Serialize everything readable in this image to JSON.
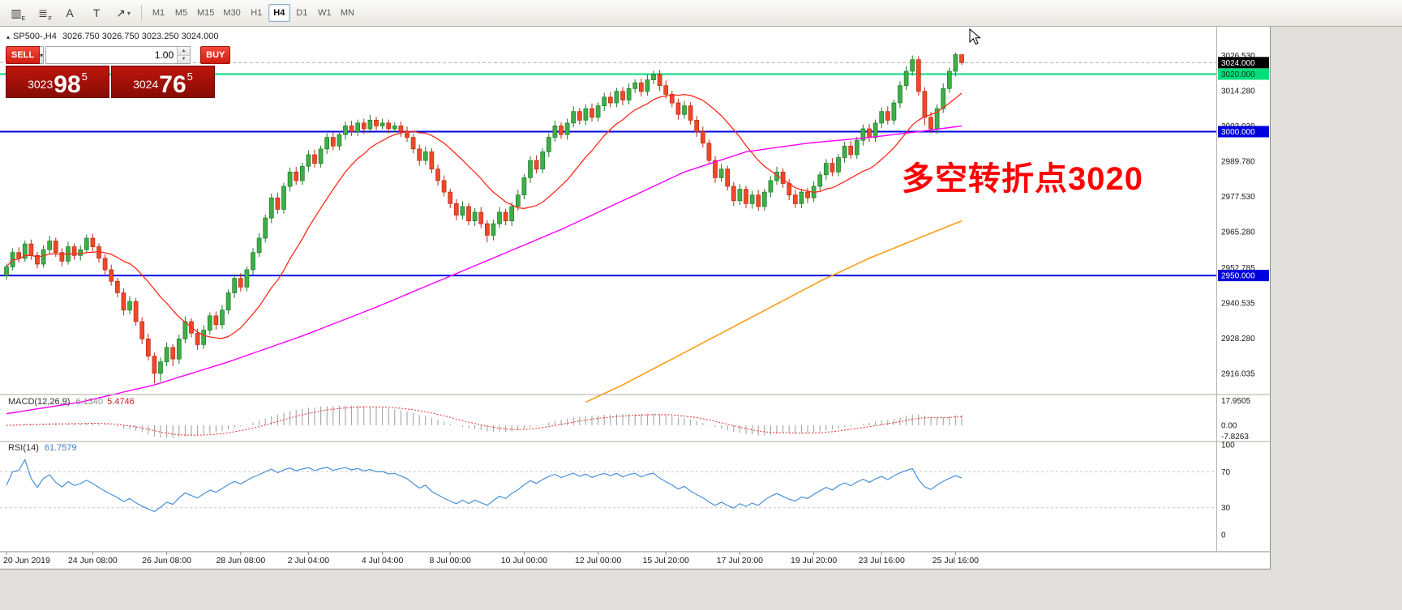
{
  "toolbar": {
    "tools": [
      {
        "name": "chart-type-icon",
        "glyph": "▥",
        "sub": "E"
      },
      {
        "name": "indicators-icon",
        "glyph": "≣",
        "sub": "F"
      },
      {
        "name": "font-icon",
        "glyph": "A"
      },
      {
        "name": "text-label-icon",
        "glyph": "T"
      },
      {
        "name": "arrow-objects-icon",
        "glyph": "↗",
        "caret": "▾"
      }
    ],
    "timeframes": [
      "M1",
      "M5",
      "M15",
      "M30",
      "H1",
      "H4",
      "D1",
      "W1",
      "MN"
    ],
    "active_timeframe": "H4"
  },
  "chart": {
    "title_symbol": "SP500-,H4",
    "title_ohlc": "3026.750 3026.750 3023.250 3024.000",
    "annotation": {
      "text": "多空转折点3020",
      "color": "#ff0000"
    }
  },
  "trade_panel": {
    "sell_label": "SELL",
    "buy_label": "BUY",
    "volume": "1.00",
    "bid": {
      "main": "3023",
      "big": "98",
      "sup": "5"
    },
    "ask": {
      "main": "3024",
      "big": "76",
      "sup": "5"
    }
  },
  "price_axis": {
    "labels": [
      "3026.530",
      "3014.280",
      "3002.030",
      "2989.780",
      "2977.530",
      "2965.280",
      "2952.785",
      "2940.535",
      "2928.280",
      "2916.035"
    ],
    "tags": [
      {
        "value": "3024.000",
        "price": 3024.0,
        "bg": "#000000",
        "fg": "#ffffff",
        "name": "current-price-tag"
      },
      {
        "value": "3020.000",
        "price": 3020.0,
        "bg": "#00dd7a",
        "fg": "#00391c",
        "name": "hline-3020-tag"
      },
      {
        "value": "3000.000",
        "price": 3000.0,
        "bg": "#0000dd",
        "fg": "#ffffff",
        "name": "hline-3000-tag"
      },
      {
        "value": "2950.000",
        "price": 2950.0,
        "bg": "#0000dd",
        "fg": "#ffffff",
        "name": "hline-2950-tag"
      }
    ]
  },
  "time_axis": {
    "labels": [
      {
        "text": "20 Jun 2019",
        "i": 0
      },
      {
        "text": "24 Jun 08:00",
        "i": 14
      },
      {
        "text": "26 Jun 08:00",
        "i": 26
      },
      {
        "text": "28 Jun 08:00",
        "i": 38
      },
      {
        "text": "2 Jul 04:00",
        "i": 49
      },
      {
        "text": "4 Jul 04:00",
        "i": 61
      },
      {
        "text": "8 Jul 00:00",
        "i": 72
      },
      {
        "text": "10 Jul 00:00",
        "i": 84
      },
      {
        "text": "12 Jul 00:00",
        "i": 96
      },
      {
        "text": "15 Jul 20:00",
        "i": 107
      },
      {
        "text": "17 Jul 20:00",
        "i": 119
      },
      {
        "text": "19 Jul 20:00",
        "i": 131
      },
      {
        "text": "23 Jul 16:00",
        "i": 142
      },
      {
        "text": "25 Jul 16:00",
        "i": 154
      }
    ]
  },
  "indicators": {
    "macd": {
      "label": "MACD(12,26,9)",
      "v1": "6.1340",
      "v2": "5.4746",
      "axis": [
        "17.9505",
        "0.00",
        "-7.8263"
      ]
    },
    "rsi": {
      "label": "RSI(14)",
      "value": "61.7579",
      "axis": [
        "100",
        "70",
        "30",
        "0"
      ]
    }
  },
  "chart_data": {
    "type": "candlestick",
    "symbol": "SP500-",
    "period": "H4",
    "title": "SP500-,H4 3026.750 3026.750 3023.250 3024.000",
    "price_range": [
      2909.5,
      3034.5
    ],
    "bid_line": 3024.0,
    "up_color": "#3fae49",
    "up_edge": "#1c7a24",
    "down_color": "#f0482a",
    "down_edge": "#b52a10",
    "ma_fast_period": 15,
    "ma_fast_color": "#ff2a1a",
    "ma_magenta_color": "#ff00ff",
    "ma_orange_color": "#ffa21f",
    "ma_magenta": [
      [
        0,
        2902
      ],
      [
        12,
        2906
      ],
      [
        24,
        2912
      ],
      [
        36,
        2920
      ],
      [
        48,
        2929
      ],
      [
        60,
        2939
      ],
      [
        70,
        2948
      ],
      [
        80,
        2957
      ],
      [
        90,
        2966
      ],
      [
        100,
        2976
      ],
      [
        110,
        2986
      ],
      [
        120,
        2993
      ],
      [
        130,
        2996
      ],
      [
        140,
        2998
      ],
      [
        148,
        3000
      ],
      [
        155,
        3002
      ]
    ],
    "ma_orange": [
      [
        94,
        2906
      ],
      [
        100,
        2912
      ],
      [
        108,
        2921
      ],
      [
        116,
        2930
      ],
      [
        124,
        2939
      ],
      [
        132,
        2948
      ],
      [
        140,
        2956
      ],
      [
        148,
        2963
      ],
      [
        155,
        2969
      ]
    ],
    "hlines": [
      {
        "price": 3020,
        "color": "#00dd7a",
        "width": 2
      },
      {
        "price": 3000,
        "color": "#0000e6",
        "width": 2
      },
      {
        "price": 2950,
        "color": "#0000e6",
        "width": 2
      }
    ],
    "macd": {
      "fast": 12,
      "slow": 26,
      "signal": 9,
      "hist_color": "#9c9c9c",
      "signal_color": "#e03030",
      "range": [
        -10,
        20
      ]
    },
    "rsi": {
      "period": 14,
      "color": "#4a90d9",
      "levels": [
        70,
        30
      ],
      "range": [
        0,
        100
      ]
    },
    "candles": [
      [
        2950,
        2954.2,
        2948.5,
        2953
      ],
      [
        2953,
        2959.5,
        2951.8,
        2958
      ],
      [
        2958,
        2959.8,
        2954.5,
        2956
      ],
      [
        2956,
        2962.2,
        2954.8,
        2961
      ],
      [
        2961,
        2962.5,
        2955.5,
        2957
      ],
      [
        2957,
        2958.2,
        2952.5,
        2954
      ],
      [
        2954,
        2960.5,
        2952.8,
        2959
      ],
      [
        2959,
        2963.8,
        2957.5,
        2962
      ],
      [
        2962,
        2963.2,
        2956.5,
        2958
      ],
      [
        2958,
        2959.5,
        2953.2,
        2955
      ],
      [
        2955,
        2961.8,
        2953.8,
        2960
      ],
      [
        2960,
        2961.2,
        2955.5,
        2957
      ],
      [
        2957,
        2960.5,
        2955.2,
        2959
      ],
      [
        2959,
        2964.2,
        2957.8,
        2963
      ],
      [
        2963,
        2964.5,
        2958.5,
        2960
      ],
      [
        2960,
        2961.2,
        2954.5,
        2956
      ],
      [
        2956,
        2957.5,
        2950.2,
        2952
      ],
      [
        2952,
        2953.8,
        2946.5,
        2948
      ],
      [
        2948,
        2949.2,
        2942.5,
        2944
      ],
      [
        2944,
        2945.5,
        2936.2,
        2938
      ],
      [
        2938,
        2942.8,
        2936.5,
        2941
      ],
      [
        2941,
        2942.2,
        2932.5,
        2934
      ],
      [
        2934,
        2935.5,
        2926.2,
        2928
      ],
      [
        2928,
        2929.8,
        2920.5,
        2922
      ],
      [
        2922,
        2923.2,
        2912.5,
        2916
      ],
      [
        2916,
        2921.5,
        2913.2,
        2920
      ],
      [
        2920,
        2926.8,
        2918.5,
        2925
      ],
      [
        2925,
        2926.2,
        2918.5,
        2921
      ],
      [
        2921,
        2929.5,
        2919.2,
        2928
      ],
      [
        2928,
        2935.8,
        2926.5,
        2934
      ],
      [
        2934,
        2935.2,
        2928.5,
        2930
      ],
      [
        2930,
        2931.5,
        2924.2,
        2926
      ],
      [
        2926,
        2932.8,
        2924.5,
        2931
      ],
      [
        2931,
        2937.2,
        2929.5,
        2936
      ],
      [
        2936,
        2937.5,
        2931.2,
        2933
      ],
      [
        2933,
        2939.8,
        2931.5,
        2938
      ],
      [
        2938,
        2945.2,
        2936.5,
        2944
      ],
      [
        2944,
        2950.5,
        2942.2,
        2949
      ],
      [
        2949,
        2950.8,
        2944.5,
        2946
      ],
      [
        2946,
        2953.2,
        2944.5,
        2952
      ],
      [
        2952,
        2959.5,
        2950.2,
        2958
      ],
      [
        2958,
        2964.8,
        2956.5,
        2963
      ],
      [
        2963,
        2971.2,
        2961.5,
        2970
      ],
      [
        2970,
        2978.5,
        2968.2,
        2977
      ],
      [
        2977,
        2978.8,
        2971.5,
        2973
      ],
      [
        2973,
        2982.2,
        2971.5,
        2981
      ],
      [
        2981,
        2987.5,
        2979.2,
        2986
      ],
      [
        2986,
        2987.8,
        2981.5,
        2983
      ],
      [
        2983,
        2989.2,
        2981.5,
        2988
      ],
      [
        2988,
        2993.5,
        2986.2,
        2992
      ],
      [
        2992,
        2993.8,
        2987.5,
        2989
      ],
      [
        2989,
        2995.2,
        2987.5,
        2994
      ],
      [
        2994,
        2999.5,
        2992.2,
        2998
      ],
      [
        2998,
        2999.8,
        2993.5,
        2995
      ],
      [
        2995,
        3000.2,
        2993.5,
        2999
      ],
      [
        2999,
        3003.5,
        2997.2,
        3002
      ],
      [
        3002,
        3003.8,
        2998.5,
        3000
      ],
      [
        3000,
        3004.2,
        2998.5,
        3003
      ],
      [
        3003,
        3004.5,
        2999.2,
        3001
      ],
      [
        3001,
        3005.8,
        2999.5,
        3004
      ],
      [
        3004,
        3005.2,
        3000.5,
        3002
      ],
      [
        3002,
        3004.5,
        3000.8,
        3003
      ],
      [
        3003,
        3004.2,
        2999.5,
        3001
      ],
      [
        3001,
        3003.2,
        2999.8,
        3002
      ],
      [
        3002,
        3003.5,
        2998.2,
        3000
      ],
      [
        3000,
        3001.8,
        2996.5,
        2998
      ],
      [
        2998,
        2999.2,
        2992.5,
        2994
      ],
      [
        2994,
        2995.5,
        2988.2,
        2990
      ],
      [
        2990,
        2994.8,
        2988.5,
        2993
      ],
      [
        2993,
        2994.2,
        2985.5,
        2987
      ],
      [
        2987,
        2988.5,
        2981.2,
        2983
      ],
      [
        2983,
        2984.8,
        2977.5,
        2979
      ],
      [
        2979,
        2980.2,
        2973.5,
        2975
      ],
      [
        2975,
        2976.5,
        2969.2,
        2971
      ],
      [
        2971,
        2975.8,
        2969.5,
        2974
      ],
      [
        2974,
        2975.2,
        2967.5,
        2969
      ],
      [
        2969,
        2973.5,
        2967.2,
        2972
      ],
      [
        2972,
        2973.8,
        2966.5,
        2968
      ],
      [
        2968,
        2969.2,
        2961.5,
        2964
      ],
      [
        2964,
        2969.5,
        2962.2,
        2968
      ],
      [
        2968,
        2973.8,
        2966.5,
        2972
      ],
      [
        2972,
        2973.2,
        2967.5,
        2969
      ],
      [
        2969,
        2975.5,
        2967.2,
        2974
      ],
      [
        2974,
        2979.8,
        2972.5,
        2978
      ],
      [
        2978,
        2985.2,
        2976.5,
        2984
      ],
      [
        2984,
        2991.5,
        2982.2,
        2990
      ],
      [
        2990,
        2991.8,
        2985.5,
        2987
      ],
      [
        2987,
        2994.2,
        2985.5,
        2993
      ],
      [
        2993,
        2999.5,
        2991.2,
        2998
      ],
      [
        2998,
        3003.8,
        2996.5,
        3002
      ],
      [
        3002,
        3003.2,
        2997.5,
        2999
      ],
      [
        2999,
        3004.5,
        2997.2,
        3003
      ],
      [
        3003,
        3008.8,
        3001.5,
        3007
      ],
      [
        3007,
        3008.2,
        3002.5,
        3004
      ],
      [
        3004,
        3009.5,
        3002.2,
        3008
      ],
      [
        3008,
        3009.8,
        3003.5,
        3005
      ],
      [
        3005,
        3010.2,
        3003.5,
        3009
      ],
      [
        3009,
        3013.5,
        3007.2,
        3012
      ],
      [
        3012,
        3013.8,
        3008.5,
        3010
      ],
      [
        3010,
        3015.2,
        3008.5,
        3014
      ],
      [
        3014,
        3015.5,
        3009.2,
        3011
      ],
      [
        3011,
        3016.8,
        3009.5,
        3015
      ],
      [
        3015,
        3018.2,
        3013.5,
        3017
      ],
      [
        3017,
        3018.5,
        3012.2,
        3014
      ],
      [
        3014,
        3019.8,
        3012.5,
        3018
      ],
      [
        3018,
        3021.2,
        3016.5,
        3020
      ],
      [
        3020,
        3021.5,
        3014.2,
        3016
      ],
      [
        3016,
        3017.8,
        3011.5,
        3013
      ],
      [
        3013,
        3014.2,
        3008.5,
        3010
      ],
      [
        3010,
        3011.5,
        3004.2,
        3006
      ],
      [
        3006,
        3010.8,
        3004.5,
        3009
      ],
      [
        3009,
        3010.2,
        3002.5,
        3004
      ],
      [
        3004,
        3005.5,
        2998.2,
        3000
      ],
      [
        3000,
        3001.8,
        2994.5,
        2996
      ],
      [
        2996,
        2997.2,
        2988.5,
        2990
      ],
      [
        2990,
        2991.5,
        2982.2,
        2984
      ],
      [
        2984,
        2988.8,
        2982.5,
        2987
      ],
      [
        2987,
        2988.2,
        2979.5,
        2981
      ],
      [
        2981,
        2982.5,
        2974.2,
        2976
      ],
      [
        2976,
        2981.8,
        2974.5,
        2980
      ],
      [
        2980,
        2981.2,
        2973.5,
        2975
      ],
      [
        2975,
        2979.5,
        2973.2,
        2978
      ],
      [
        2978,
        2979.8,
        2972.5,
        2974
      ],
      [
        2974,
        2980.2,
        2972.5,
        2979
      ],
      [
        2979,
        2984.5,
        2977.2,
        2983
      ],
      [
        2983,
        2987.8,
        2981.5,
        2986
      ],
      [
        2986,
        2987.2,
        2980.5,
        2982
      ],
      [
        2982,
        2983.5,
        2976.2,
        2978
      ],
      [
        2978,
        2979.8,
        2973.5,
        2975
      ],
      [
        2975,
        2980.2,
        2973.5,
        2979
      ],
      [
        2979,
        2980.5,
        2975.2,
        2977
      ],
      [
        2977,
        2982.8,
        2975.5,
        2981
      ],
      [
        2981,
        2986.2,
        2979.5,
        2985
      ],
      [
        2985,
        2990.5,
        2983.2,
        2989
      ],
      [
        2989,
        2990.8,
        2984.5,
        2986
      ],
      [
        2986,
        2992.2,
        2984.5,
        2991
      ],
      [
        2991,
        2996.5,
        2989.2,
        2995
      ],
      [
        2995,
        2996.8,
        2990.5,
        2992
      ],
      [
        2992,
        2998.2,
        2990.5,
        2997
      ],
      [
        2997,
        3002.5,
        2995.2,
        3001
      ],
      [
        3001,
        3002.8,
        2996.5,
        2998
      ],
      [
        2998,
        3004.2,
        2996.5,
        3003
      ],
      [
        3003,
        3008.5,
        3001.2,
        3007
      ],
      [
        3007,
        3008.8,
        3002.5,
        3004
      ],
      [
        3004,
        3011.2,
        3002.5,
        3010
      ],
      [
        3010,
        3017.5,
        3008.2,
        3016
      ],
      [
        3016,
        3022.8,
        3014.5,
        3021
      ],
      [
        3021,
        3026.5,
        3019.5,
        3025
      ],
      [
        3025,
        3026.2,
        3012.5,
        3014
      ],
      [
        3014,
        3015.5,
        3002.2,
        3005
      ],
      [
        3005,
        3006.8,
        2999.5,
        3001
      ],
      [
        3001,
        3009.5,
        2999.2,
        3008
      ],
      [
        3008,
        3016.8,
        3006.5,
        3015
      ],
      [
        3015,
        3022.2,
        3013.5,
        3021
      ],
      [
        3021,
        3027.5,
        3019.2,
        3026.75
      ],
      [
        3026.75,
        3026.75,
        3023.25,
        3024
      ]
    ]
  }
}
